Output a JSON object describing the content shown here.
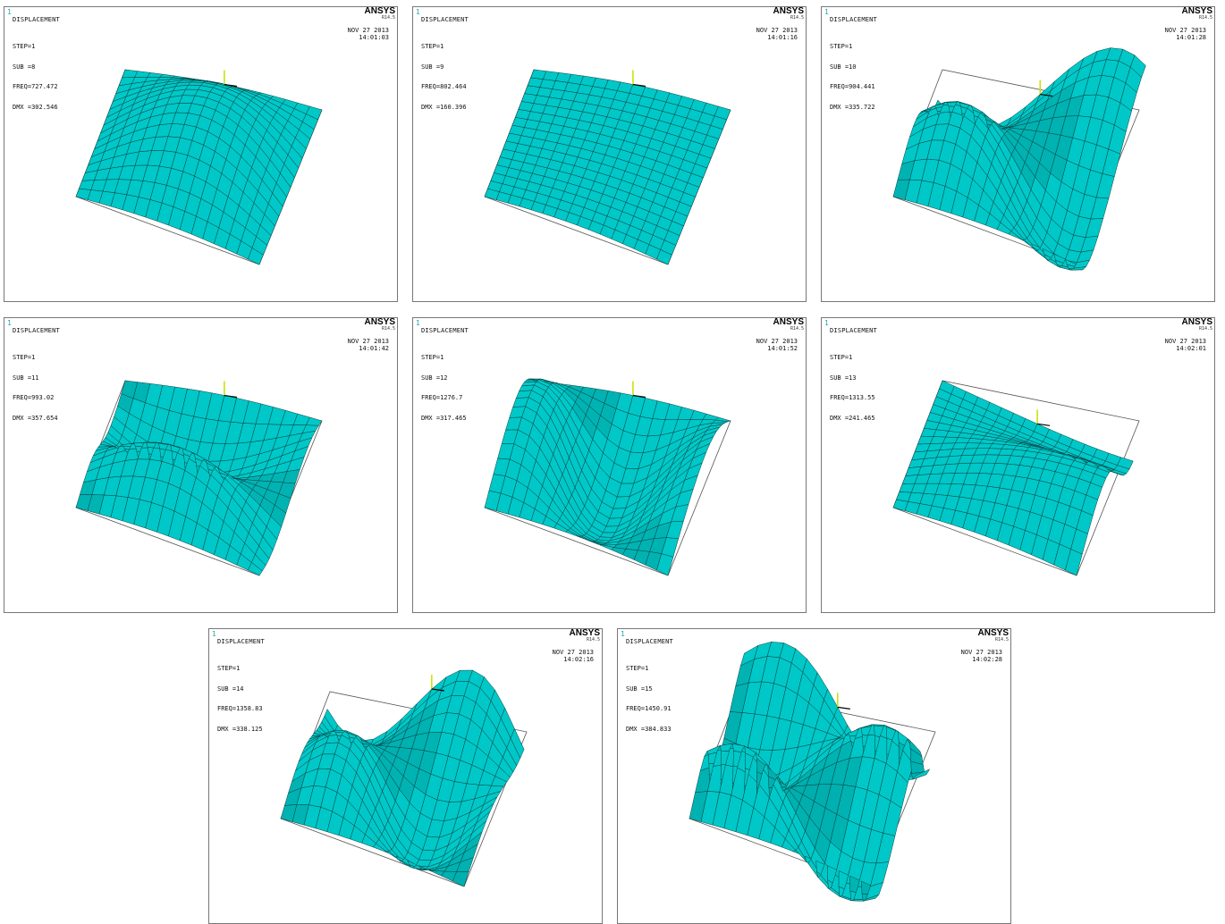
{
  "brand": "ANSYS",
  "release": "R14.5",
  "accent_color": "#00c8c8",
  "panels": [
    {
      "num": "1",
      "title": "DISPLACEMENT",
      "step": "STEP=1",
      "sub": "SUB =8",
      "freq": "FREQ=727.472",
      "dmx": "DMX =302.546",
      "date": "NOV 27 2013",
      "time": "14:01:03"
    },
    {
      "num": "1",
      "title": "DISPLACEMENT",
      "step": "STEP=1",
      "sub": "SUB =9",
      "freq": "FREQ=802.464",
      "dmx": "DMX =160.396",
      "date": "NOV 27 2013",
      "time": "14:01:16"
    },
    {
      "num": "1",
      "title": "DISPLACEMENT",
      "step": "STEP=1",
      "sub": "SUB =10",
      "freq": "FREQ=904.441",
      "dmx": "DMX =335.722",
      "date": "NOV 27 2013",
      "time": "14:01:28"
    },
    {
      "num": "1",
      "title": "DISPLACEMENT",
      "step": "STEP=1",
      "sub": "SUB =11",
      "freq": "FREQ=993.02",
      "dmx": "DMX =357.654",
      "date": "NOV 27 2013",
      "time": "14:01:42"
    },
    {
      "num": "1",
      "title": "DISPLACEMENT",
      "step": "STEP=1",
      "sub": "SUB =12",
      "freq": "FREQ=1276.7",
      "dmx": "DMX =317.465",
      "date": "NOV 27 2013",
      "time": "14:01:52"
    },
    {
      "num": "1",
      "title": "DISPLACEMENT",
      "step": "STEP=1",
      "sub": "SUB =13",
      "freq": "FREQ=1313.55",
      "dmx": "DMX =241.465",
      "date": "NOV 27 2013",
      "time": "14:02:01"
    },
    {
      "num": "1",
      "title": "DISPLACEMENT",
      "step": "STEP=1",
      "sub": "SUB =14",
      "freq": "FREQ=1358.83",
      "dmx": "DMX =338.125",
      "date": "NOV 27 2013",
      "time": "14:02:16"
    },
    {
      "num": "1",
      "title": "DISPLACEMENT",
      "step": "STEP=1",
      "sub": "SUB =15",
      "freq": "FREQ=1450.91",
      "dmx": "DMX =384.833",
      "date": "NOV 27 2013",
      "time": "14:02:28"
    }
  ]
}
